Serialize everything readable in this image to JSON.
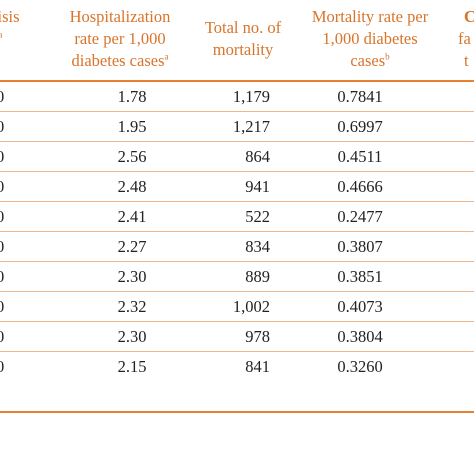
{
  "headers": {
    "prev_col_line1": "risis",
    "prev_col_line2": "s",
    "prev_col_sup": "a",
    "hosp_line1": "Hospitalization",
    "hosp_line2": "rate per 1,000",
    "hosp_line3": "diabetes cases",
    "hosp_sup": "a",
    "total_line1": "Total no. of",
    "total_line2": "mortality",
    "mort_line1": "Mortality rate per",
    "mort_line2": "1,000 diabetes",
    "mort_line3": "cases",
    "mort_sup": "b",
    "next_col_line1": "C",
    "next_col_line2": "fa",
    "next_col_line3": "t"
  },
  "rows": [
    {
      "edge": "0",
      "rate": "1.78",
      "total": "1,179",
      "mortality": "0.7841"
    },
    {
      "edge": "0",
      "rate": "1.95",
      "total": "1,217",
      "mortality": "0.6997"
    },
    {
      "edge": "0",
      "rate": "2.56",
      "total": "864",
      "mortality": "0.4511"
    },
    {
      "edge": "0",
      "rate": "2.48",
      "total": "941",
      "mortality": "0.4666"
    },
    {
      "edge": "0",
      "rate": "2.41",
      "total": "522",
      "mortality": "0.2477"
    },
    {
      "edge": "0",
      "rate": "2.27",
      "total": "834",
      "mortality": "0.3807"
    },
    {
      "edge": "0",
      "rate": "2.30",
      "total": "889",
      "mortality": "0.3851"
    },
    {
      "edge": "0",
      "rate": "2.32",
      "total": "1,002",
      "mortality": "0.4073"
    },
    {
      "edge": "0",
      "rate": "2.30",
      "total": "978",
      "mortality": "0.3804"
    },
    {
      "edge": "0",
      "rate": "2.15",
      "total": "841",
      "mortality": "0.3260"
    }
  ]
}
